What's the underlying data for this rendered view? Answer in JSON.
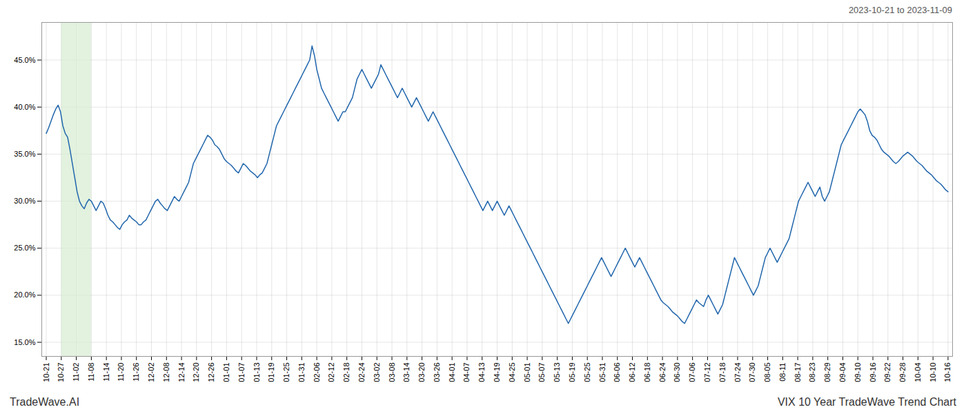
{
  "chart_data": {
    "type": "line",
    "title": "VIX 10 Year TradeWave Trend Chart",
    "subtitle": "2023-10-21 to 2023-11-09",
    "annotations": [
      "TradeWave.AI"
    ],
    "color": "#2166ac",
    "grid": true,
    "highlight": {
      "x": [
        1,
        3
      ],
      "color": "#d6ecd2"
    },
    "xlim": [
      -0.3,
      60.3
    ],
    "xticks": [
      {
        "value": 0,
        "label": "10-21"
      },
      {
        "value": 1,
        "label": "10-27"
      },
      {
        "value": 2,
        "label": "11-02"
      },
      {
        "value": 3,
        "label": "11-08"
      },
      {
        "value": 4,
        "label": "11-14"
      },
      {
        "value": 5,
        "label": "11-20"
      },
      {
        "value": 6,
        "label": "11-26"
      },
      {
        "value": 7,
        "label": "12-02"
      },
      {
        "value": 8,
        "label": "12-08"
      },
      {
        "value": 9,
        "label": "12-14"
      },
      {
        "value": 10,
        "label": "12-20"
      },
      {
        "value": 11,
        "label": "12-26"
      },
      {
        "value": 12,
        "label": "01-01"
      },
      {
        "value": 13,
        "label": "01-07"
      },
      {
        "value": 14,
        "label": "01-13"
      },
      {
        "value": 15,
        "label": "01-19"
      },
      {
        "value": 16,
        "label": "01-25"
      },
      {
        "value": 17,
        "label": "01-31"
      },
      {
        "value": 18,
        "label": "02-06"
      },
      {
        "value": 19,
        "label": "02-12"
      },
      {
        "value": 20,
        "label": "02-18"
      },
      {
        "value": 21,
        "label": "02-24"
      },
      {
        "value": 22,
        "label": "03-02"
      },
      {
        "value": 23,
        "label": "03-08"
      },
      {
        "value": 24,
        "label": "03-14"
      },
      {
        "value": 25,
        "label": "03-20"
      },
      {
        "value": 26,
        "label": "03-26"
      },
      {
        "value": 27,
        "label": "04-01"
      },
      {
        "value": 28,
        "label": "04-07"
      },
      {
        "value": 29,
        "label": "04-13"
      },
      {
        "value": 30,
        "label": "04-19"
      },
      {
        "value": 31,
        "label": "04-25"
      },
      {
        "value": 32,
        "label": "05-01"
      },
      {
        "value": 33,
        "label": "05-07"
      },
      {
        "value": 34,
        "label": "05-13"
      },
      {
        "value": 35,
        "label": "05-19"
      },
      {
        "value": 36,
        "label": "05-25"
      },
      {
        "value": 37,
        "label": "05-31"
      },
      {
        "value": 38,
        "label": "06-06"
      },
      {
        "value": 39,
        "label": "06-12"
      },
      {
        "value": 40,
        "label": "06-18"
      },
      {
        "value": 41,
        "label": "06-24"
      },
      {
        "value": 42,
        "label": "06-30"
      },
      {
        "value": 43,
        "label": "07-06"
      },
      {
        "value": 44,
        "label": "07-12"
      },
      {
        "value": 45,
        "label": "07-18"
      },
      {
        "value": 46,
        "label": "07-24"
      },
      {
        "value": 47,
        "label": "07-30"
      },
      {
        "value": 48,
        "label": "08-05"
      },
      {
        "value": 49,
        "label": "08-11"
      },
      {
        "value": 50,
        "label": "08-17"
      },
      {
        "value": 51,
        "label": "08-23"
      },
      {
        "value": 52,
        "label": "08-29"
      },
      {
        "value": 53,
        "label": "09-04"
      },
      {
        "value": 54,
        "label": "09-10"
      },
      {
        "value": 55,
        "label": "09-16"
      },
      {
        "value": 56,
        "label": "09-22"
      },
      {
        "value": 57,
        "label": "09-28"
      },
      {
        "value": 58,
        "label": "10-04"
      },
      {
        "value": 59,
        "label": "10-10"
      },
      {
        "value": 60,
        "label": "10-16"
      }
    ],
    "ylim": [
      13.5,
      49.0
    ],
    "yticks": [
      {
        "value": 15.0,
        "label": "15.0%"
      },
      {
        "value": 20.0,
        "label": "20.0%"
      },
      {
        "value": 25.0,
        "label": "25.0%"
      },
      {
        "value": 30.0,
        "label": "30.0%"
      },
      {
        "value": 35.0,
        "label": "35.0%"
      },
      {
        "value": 40.0,
        "label": "40.0%"
      },
      {
        "value": 45.0,
        "label": "45.0%"
      }
    ],
    "values": [
      37.2,
      37.8,
      38.5,
      39.2,
      39.8,
      40.2,
      39.5,
      38.0,
      37.2,
      36.8,
      35.5,
      34.0,
      32.5,
      31.0,
      30.0,
      29.5,
      29.2,
      29.8,
      30.2,
      30.0,
      29.5,
      29.0,
      29.5,
      30.0,
      29.8,
      29.2,
      28.5,
      28.0,
      27.8,
      27.5,
      27.2,
      27.0,
      27.5,
      27.8,
      28.0,
      28.5,
      28.2,
      28.0,
      27.8,
      27.5,
      27.5,
      27.8,
      28.0,
      28.5,
      29.0,
      29.5,
      30.0,
      30.2,
      29.8,
      29.5,
      29.2,
      29.0,
      29.5,
      30.0,
      30.5,
      30.2,
      30.0,
      30.5,
      31.0,
      31.5,
      32.0,
      33.0,
      34.0,
      34.5,
      35.0,
      35.5,
      36.0,
      36.5,
      37.0,
      36.8,
      36.5,
      36.0,
      35.8,
      35.5,
      35.0,
      34.5,
      34.2,
      34.0,
      33.8,
      33.5,
      33.2,
      33.0,
      33.5,
      34.0,
      33.8,
      33.5,
      33.2,
      33.0,
      32.8,
      32.5,
      32.8,
      33.0,
      33.5,
      34.0,
      35.0,
      36.0,
      37.0,
      38.0,
      38.5,
      39.0,
      39.5,
      40.0,
      40.5,
      41.0,
      41.5,
      42.0,
      42.5,
      43.0,
      43.5,
      44.0,
      44.5,
      45.0,
      46.5,
      45.5,
      44.0,
      43.0,
      42.0,
      41.5,
      41.0,
      40.5,
      40.0,
      39.5,
      39.0,
      38.5,
      39.0,
      39.5,
      39.5,
      40.0,
      40.5,
      41.0,
      42.0,
      43.0,
      43.5,
      44.0,
      43.5,
      43.0,
      42.5,
      42.0,
      42.5,
      43.0,
      43.5,
      44.5,
      44.0,
      43.5,
      43.0,
      42.5,
      42.0,
      41.5,
      41.0,
      41.5,
      42.0,
      41.5,
      41.0,
      40.5,
      40.0,
      40.5,
      41.0,
      40.5,
      40.0,
      39.5,
      39.0,
      38.5,
      39.0,
      39.5,
      39.0,
      38.5,
      38.0,
      37.5,
      37.0,
      36.5,
      36.0,
      35.5,
      35.0,
      34.5,
      34.0,
      33.5,
      33.0,
      32.5,
      32.0,
      31.5,
      31.0,
      30.5,
      30.0,
      29.5,
      29.0,
      29.5,
      30.0,
      29.5,
      29.0,
      29.5,
      30.0,
      29.5,
      29.0,
      28.5,
      29.0,
      29.5,
      29.0,
      28.5,
      28.0,
      27.5,
      27.0,
      26.5,
      26.0,
      25.5,
      25.0,
      24.5,
      24.0,
      23.5,
      23.0,
      22.5,
      22.0,
      21.5,
      21.0,
      20.5,
      20.0,
      19.5,
      19.0,
      18.5,
      18.0,
      17.5,
      17.0,
      17.5,
      18.0,
      18.5,
      19.0,
      19.5,
      20.0,
      20.5,
      21.0,
      21.5,
      22.0,
      22.5,
      23.0,
      23.5,
      24.0,
      23.5,
      23.0,
      22.5,
      22.0,
      22.5,
      23.0,
      23.5,
      24.0,
      24.5,
      25.0,
      24.5,
      24.0,
      23.5,
      23.0,
      23.5,
      24.0,
      23.5,
      23.0,
      22.5,
      22.0,
      21.5,
      21.0,
      20.5,
      20.0,
      19.5,
      19.2,
      19.0,
      18.8,
      18.5,
      18.2,
      18.0,
      17.8,
      17.5,
      17.2,
      17.0,
      17.5,
      18.0,
      18.5,
      19.0,
      19.5,
      19.2,
      19.0,
      18.8,
      19.5,
      20.0,
      19.5,
      19.0,
      18.5,
      18.0,
      18.5,
      19.0,
      20.0,
      21.0,
      22.0,
      23.0,
      24.0,
      23.5,
      23.0,
      22.5,
      22.0,
      21.5,
      21.0,
      20.5,
      20.0,
      20.5,
      21.0,
      22.0,
      23.0,
      24.0,
      24.5,
      25.0,
      24.5,
      24.0,
      23.5,
      24.0,
      24.5,
      25.0,
      25.5,
      26.0,
      27.0,
      28.0,
      29.0,
      30.0,
      30.5,
      31.0,
      31.5,
      32.0,
      31.5,
      31.0,
      30.5,
      31.0,
      31.5,
      30.5,
      30.0,
      30.5,
      31.0,
      32.0,
      33.0,
      34.0,
      35.0,
      36.0,
      36.5,
      37.0,
      37.5,
      38.0,
      38.5,
      39.0,
      39.5,
      39.8,
      39.5,
      39.2,
      38.5,
      37.5,
      37.0,
      36.8,
      36.5,
      36.0,
      35.5,
      35.2,
      35.0,
      34.8,
      34.5,
      34.2,
      34.0,
      34.2,
      34.5,
      34.8,
      35.0,
      35.2,
      35.0,
      34.8,
      34.5,
      34.2,
      34.0,
      33.8,
      33.5,
      33.2,
      33.0,
      32.8,
      32.5,
      32.2,
      32.0,
      31.8,
      31.5,
      31.2,
      31.0
    ]
  }
}
